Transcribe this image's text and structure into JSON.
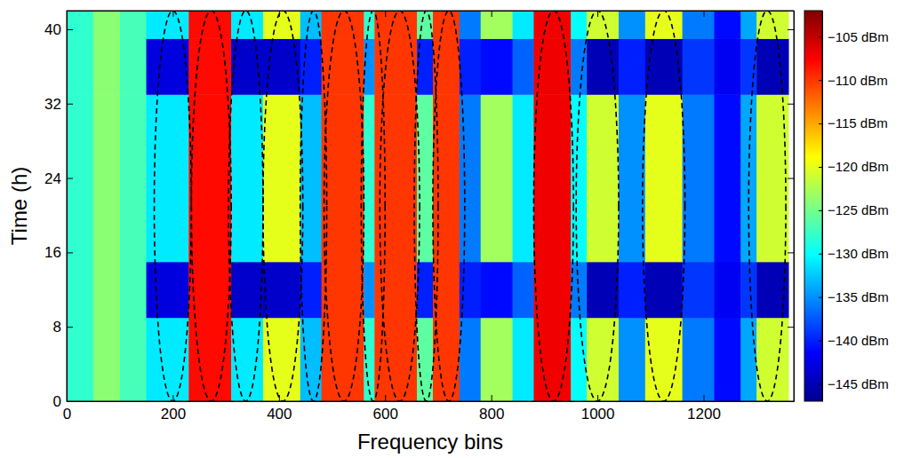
{
  "chart_data": {
    "type": "heatmap",
    "x_label": "Frequency bins",
    "y_label": "Time (h)",
    "xlim": [
      0,
      1370
    ],
    "xticks": [
      0,
      200,
      400,
      600,
      800,
      1000,
      1200
    ],
    "ylim": [
      0,
      42
    ],
    "yticks": [
      0,
      8,
      16,
      24,
      32,
      40
    ],
    "x_edges": [
      0,
      50,
      100,
      150,
      230,
      310,
      370,
      440,
      480,
      560,
      580,
      660,
      690,
      740,
      780,
      840,
      880,
      950,
      980,
      1040,
      1090,
      1160,
      1220,
      1270,
      1300,
      1360
    ],
    "y_edges": [
      0,
      9,
      15,
      33,
      39,
      42
    ],
    "values": [
      [
        -128,
        -124,
        -127,
        -131,
        -108,
        -131,
        -120,
        -133,
        -110,
        -128,
        -110,
        -126,
        -110,
        -136,
        -123,
        -131,
        -107,
        -130,
        -121,
        -135,
        -120,
        -136,
        -141,
        -134,
        -121
      ],
      [
        -128,
        -124,
        -127,
        -143,
        -108,
        -144,
        -144,
        -140,
        -110,
        -135,
        -110,
        -140,
        -110,
        -140,
        -141,
        -137,
        -107,
        -136,
        -145,
        -140,
        -145,
        -139,
        -142,
        -139,
        -145
      ],
      [
        -128,
        -124,
        -127,
        -131,
        -108,
        -131,
        -120,
        -133,
        -110,
        -128,
        -110,
        -126,
        -110,
        -136,
        -123,
        -131,
        -107,
        -130,
        -121,
        -135,
        -120,
        -136,
        -141,
        -134,
        -121
      ],
      [
        -128,
        -124,
        -127,
        -143,
        -108,
        -144,
        -144,
        -140,
        -110,
        -135,
        -110,
        -140,
        -110,
        -140,
        -141,
        -137,
        -107,
        -136,
        -145,
        -140,
        -145,
        -139,
        -142,
        -139,
        -145
      ],
      [
        -128,
        -124,
        -127,
        -131,
        -108,
        -131,
        -120,
        -133,
        -110,
        -128,
        -110,
        -126,
        -110,
        -136,
        -123,
        -131,
        -107,
        -130,
        -121,
        -135,
        -120,
        -136,
        -141,
        -134,
        -121
      ]
    ],
    "channel_ellipses": [
      [
        165,
        235
      ],
      [
        235,
        310
      ],
      [
        305,
        370
      ],
      [
        370,
        445
      ],
      [
        440,
        490
      ],
      [
        485,
        560
      ],
      [
        555,
        600
      ],
      [
        590,
        665
      ],
      [
        655,
        700
      ],
      [
        690,
        750
      ],
      [
        880,
        955
      ],
      [
        960,
        1040
      ],
      [
        1085,
        1165
      ],
      [
        1285,
        1355
      ]
    ],
    "colorbar": {
      "range": [
        -147,
        -102
      ],
      "ticks": [
        {
          "value": -145,
          "label": "−145 dBm"
        },
        {
          "value": -140,
          "label": "−140 dBm"
        },
        {
          "value": -135,
          "label": "−135 dBm"
        },
        {
          "value": -130,
          "label": "−130 dBm"
        },
        {
          "value": -125,
          "label": "−125 dBm"
        },
        {
          "value": -120,
          "label": "−120 dBm"
        },
        {
          "value": -115,
          "label": "−115 dBm"
        },
        {
          "value": -110,
          "label": "−110 dBm"
        },
        {
          "value": -105,
          "label": "−105 dBm"
        }
      ]
    }
  }
}
